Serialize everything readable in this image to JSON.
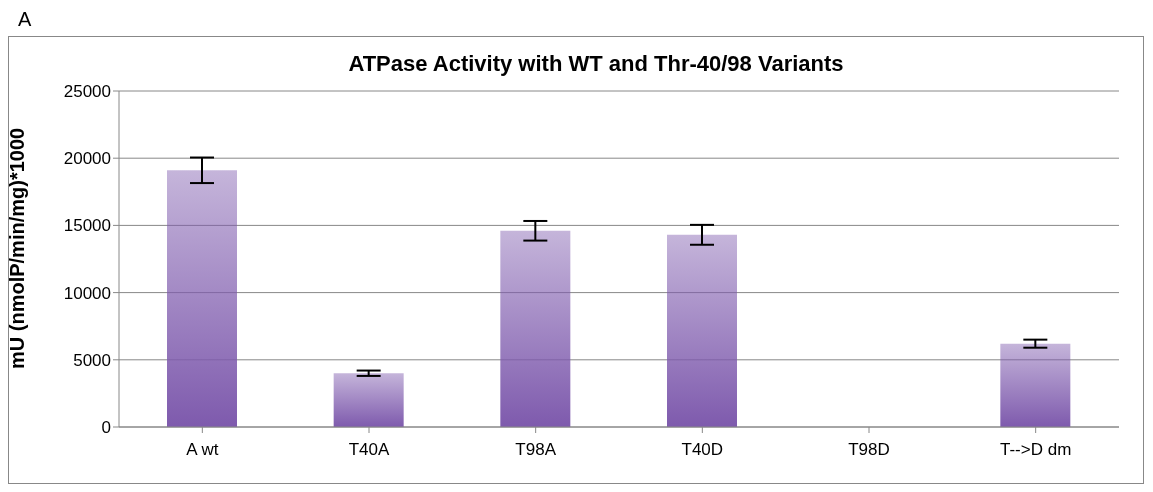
{
  "chart_data": {
    "type": "bar",
    "title": "ATPase Activity  with WT and Thr-40/98 Variants",
    "ylabel": "mU (nmolP/min/mg)*1000",
    "annotations": [
      "A"
    ],
    "categories": [
      "A wt",
      "T40A",
      "T98A",
      "T40D",
      "T98D",
      "T-->D dm"
    ],
    "values": [
      19100,
      4000,
      14600,
      14300,
      0,
      6200
    ],
    "errors": [
      950,
      200,
      730,
      740,
      null,
      300
    ],
    "color": "#7e5aad",
    "ylim": [
      0,
      25000
    ],
    "yticks": [
      0,
      5000,
      10000,
      15000,
      20000,
      25000
    ],
    "grid": "y",
    "legend": false
  }
}
